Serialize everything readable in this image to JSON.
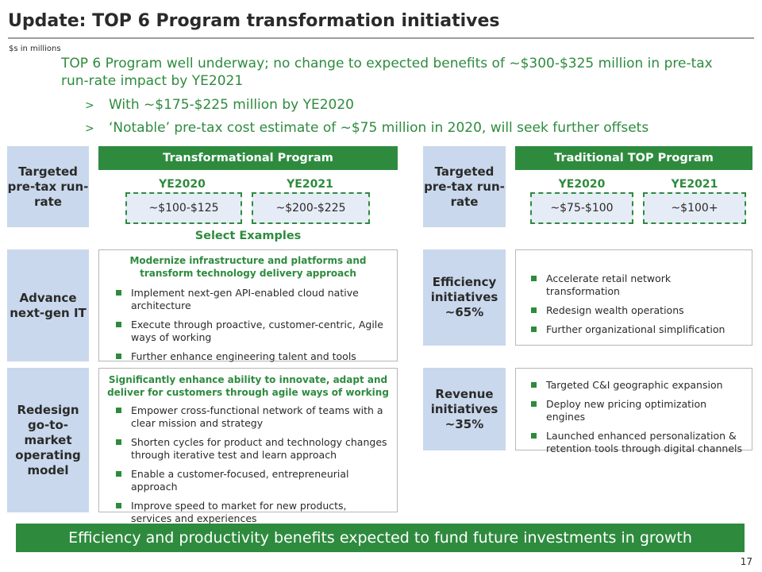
{
  "slide": {
    "title": "Update: TOP 6 Program transformation initiatives",
    "units_note": "$s in millions",
    "headline": "TOP 6 Program well underway; no change to expected benefits of ~$300-$325 million in pre-tax run-rate impact by YE2021",
    "bullets": [
      {
        "marker": ">",
        "text": "With ~$175-$225 million by YE2020"
      },
      {
        "marker": ">",
        "text": "‘Notable’ pre-tax cost estimate of ~$75 million in 2020, will seek further offsets"
      }
    ],
    "page_number": "17"
  },
  "left": {
    "run_rate_label": "Targeted pre-tax run-rate",
    "program_title": "Transformational Program",
    "years": [
      {
        "year": "YE2020",
        "value": "~$100-$125"
      },
      {
        "year": "YE2021",
        "value": "~$200-$225"
      }
    ],
    "select_examples": "Select Examples",
    "sections": [
      {
        "label": "Advance next-gen IT",
        "heading": "Modernize infrastructure and platforms and transform technology delivery approach",
        "items": [
          "Implement next-gen API-enabled cloud native architecture",
          "Execute through proactive, customer-centric, Agile ways of working",
          "Further enhance engineering talent and tools"
        ]
      },
      {
        "label": "Redesign go-to-market operating model",
        "heading": "Significantly enhance ability to innovate, adapt and deliver for customers through agile ways of working",
        "items": [
          "Empower cross-functional network of teams with a clear mission and strategy",
          "Shorten cycles for product and technology changes through iterative test and learn approach",
          "Enable a customer-focused, entrepreneurial approach",
          "Improve speed to market for new products, services and experiences"
        ]
      }
    ]
  },
  "right": {
    "run_rate_label": "Targeted pre-tax run-rate",
    "program_title": "Traditional TOP Program",
    "years": [
      {
        "year": "YE2020",
        "value": "~$75-$100"
      },
      {
        "year": "YE2021",
        "value": "~$100+"
      }
    ],
    "sections": [
      {
        "label": "Efficiency initiatives ~65%",
        "items": [
          "Accelerate retail network transformation",
          "Redesign wealth operations",
          "Further organizational simplification"
        ]
      },
      {
        "label": "Revenue initiatives ~35%",
        "items": [
          "Targeted C&I geographic expansion",
          "Deploy new pricing optimization engines",
          "Launched enhanced personalization & retention tools through digital channels"
        ]
      }
    ]
  },
  "footer": "Efficiency and productivity benefits expected to fund future investments in growth",
  "colors": {
    "accent_green": "#2e8b3e",
    "label_blue": "#c9d8ec",
    "value_fill": "#e5ecf5"
  }
}
